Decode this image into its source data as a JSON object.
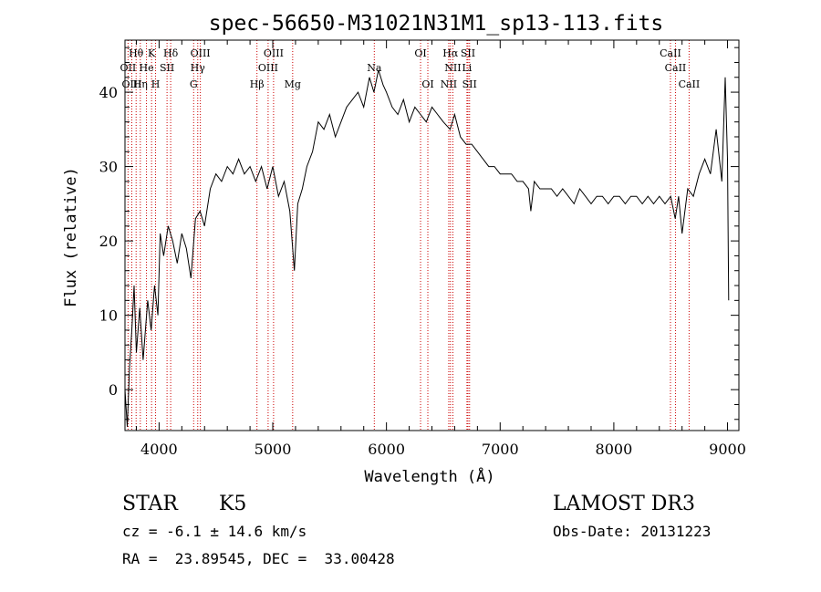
{
  "chart_data": {
    "type": "line",
    "title": "spec-56650-M31021N31M1_sp13-113.fits",
    "xlabel": "Wavelength (Å)",
    "ylabel": "Flux (relative)",
    "xlim": [
      3700,
      9100
    ],
    "ylim": [
      -5.5,
      47
    ],
    "x_ticks": [
      4000,
      5000,
      6000,
      7000,
      8000,
      9000
    ],
    "y_ticks": [
      0,
      10,
      20,
      30,
      40
    ],
    "grid": false,
    "series": [
      {
        "name": "spectrum",
        "color": "#000000",
        "x": [
          3700,
          3720,
          3740,
          3760,
          3780,
          3800,
          3830,
          3860,
          3900,
          3930,
          3960,
          3990,
          4010,
          4040,
          4080,
          4120,
          4160,
          4200,
          4240,
          4280,
          4320,
          4360,
          4400,
          4450,
          4500,
          4550,
          4600,
          4650,
          4700,
          4750,
          4800,
          4850,
          4900,
          4950,
          5000,
          5050,
          5100,
          5150,
          5190,
          5220,
          5260,
          5300,
          5350,
          5400,
          5450,
          5500,
          5550,
          5600,
          5650,
          5700,
          5750,
          5800,
          5850,
          5890,
          5930,
          5970,
          6000,
          6050,
          6100,
          6150,
          6200,
          6250,
          6300,
          6350,
          6400,
          6450,
          6500,
          6560,
          6600,
          6650,
          6700,
          6750,
          6800,
          6850,
          6900,
          6950,
          7000,
          7050,
          7100,
          7150,
          7200,
          7250,
          7270,
          7300,
          7350,
          7400,
          7450,
          7500,
          7550,
          7600,
          7650,
          7700,
          7750,
          7800,
          7850,
          7900,
          7950,
          8000,
          8050,
          8100,
          8150,
          8200,
          8250,
          8300,
          8350,
          8400,
          8450,
          8500,
          8540,
          8570,
          8600,
          8650,
          8700,
          8750,
          8800,
          8850,
          8900,
          8950,
          8980,
          9000,
          9010
        ],
        "values": [
          0,
          -5,
          3,
          8,
          14,
          5,
          11,
          4,
          12,
          8,
          14,
          10,
          21,
          18,
          22,
          20,
          17,
          21,
          19,
          15,
          23,
          24,
          22,
          27,
          29,
          28,
          30,
          29,
          31,
          29,
          30,
          28,
          30,
          27,
          30,
          26,
          28,
          24,
          16,
          25,
          27,
          30,
          32,
          36,
          35,
          37,
          34,
          36,
          38,
          39,
          40,
          38,
          42,
          40,
          43,
          41,
          40,
          38,
          37,
          39,
          36,
          38,
          37,
          36,
          38,
          37,
          36,
          35,
          37,
          34,
          33,
          33,
          32,
          31,
          30,
          30,
          29,
          29,
          29,
          28,
          28,
          27,
          24,
          28,
          27,
          27,
          27,
          26,
          27,
          26,
          25,
          27,
          26,
          25,
          26,
          26,
          25,
          26,
          26,
          25,
          26,
          26,
          25,
          26,
          25,
          26,
          25,
          26,
          23,
          26,
          21,
          27,
          26,
          29,
          31,
          29,
          35,
          28,
          42,
          31,
          12
        ]
      }
    ],
    "line_labels": [
      {
        "text": "Hθ",
        "x": 3798,
        "tier": 1
      },
      {
        "text": "K",
        "x": 3934,
        "tier": 1
      },
      {
        "text": "Hδ",
        "x": 4102,
        "tier": 1
      },
      {
        "text": "OIII",
        "x": 4363,
        "tier": 1
      },
      {
        "text": "OIII",
        "x": 5007,
        "tier": 1
      },
      {
        "text": "OI",
        "x": 6300,
        "tier": 1
      },
      {
        "text": "Hα",
        "x": 6563,
        "tier": 1
      },
      {
        "text": "SII",
        "x": 6717,
        "tier": 1
      },
      {
        "text": "CaII",
        "x": 8498,
        "tier": 1
      },
      {
        "text": "OII",
        "x": 3727,
        "tier": 2
      },
      {
        "text": "He",
        "x": 3889,
        "tier": 2
      },
      {
        "text": "SII",
        "x": 4070,
        "tier": 2
      },
      {
        "text": "Hγ",
        "x": 4340,
        "tier": 2
      },
      {
        "text": "OIII",
        "x": 4959,
        "tier": 2
      },
      {
        "text": "Na",
        "x": 5893,
        "tier": 2
      },
      {
        "text": "NII",
        "x": 6584,
        "tier": 2
      },
      {
        "text": "Li",
        "x": 6708,
        "tier": 2
      },
      {
        "text": "CaII",
        "x": 8542,
        "tier": 2
      },
      {
        "text": "OIII",
        "x": 3760,
        "tier": 3
      },
      {
        "text": "Hη",
        "x": 3835,
        "tier": 3
      },
      {
        "text": "H",
        "x": 3969,
        "tier": 3
      },
      {
        "text": "G",
        "x": 4304,
        "tier": 3
      },
      {
        "text": "Hβ",
        "x": 4861,
        "tier": 3
      },
      {
        "text": "Mg",
        "x": 5175,
        "tier": 3
      },
      {
        "text": "OI",
        "x": 6364,
        "tier": 3
      },
      {
        "text": "NII",
        "x": 6548,
        "tier": 3
      },
      {
        "text": "SII",
        "x": 6731,
        "tier": 3
      },
      {
        "text": "CaII",
        "x": 8662,
        "tier": 3
      }
    ],
    "line_marker_color": "#cc0000"
  },
  "info": {
    "object_class": "STAR",
    "subclass": "K5",
    "survey": "LAMOST DR3",
    "redshift": "cz = -6.1 ± 14.6 km/s",
    "obs_date": "Obs-Date: 20131223",
    "coords": "RA =  23.89545, DEC =  33.00428"
  }
}
